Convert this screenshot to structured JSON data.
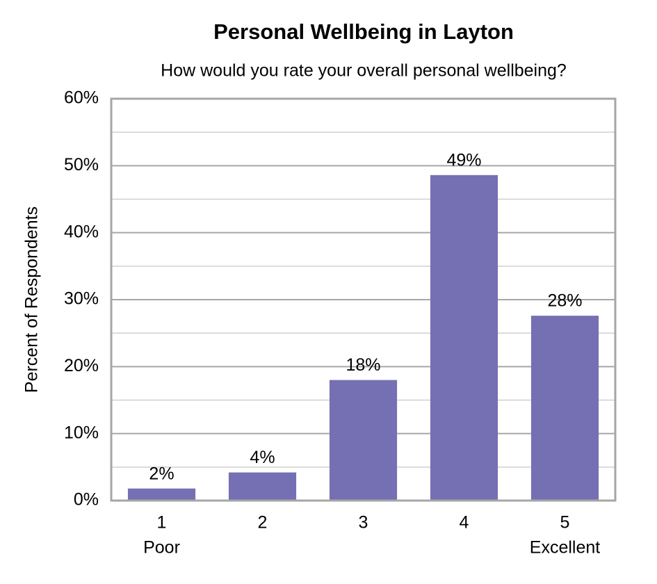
{
  "chart_data": {
    "type": "bar",
    "title": "Personal Wellbeing in Layton",
    "subtitle": "How would you rate your overall personal wellbeing?",
    "y_label": "Percent of Respondents",
    "categories": [
      "1",
      "2",
      "3",
      "4",
      "5"
    ],
    "category_sublabels": [
      "Poor",
      null,
      null,
      null,
      "Excellent"
    ],
    "values": [
      1.8,
      4.2,
      18.0,
      48.6,
      27.6
    ],
    "value_labels": [
      "2%",
      "4%",
      "18%",
      "49%",
      "28%"
    ],
    "color": "#7570b3",
    "ylim": [
      0,
      60
    ],
    "yticks": [
      {
        "value": 0,
        "label": "0%"
      },
      {
        "value": 10,
        "label": "10%"
      },
      {
        "value": 20,
        "label": "20%"
      },
      {
        "value": 30,
        "label": "30%"
      },
      {
        "value": 40,
        "label": "40%"
      },
      {
        "value": 50,
        "label": "50%"
      },
      {
        "value": 60,
        "label": "60%"
      }
    ],
    "minor_yticks": [
      5,
      15,
      25,
      35,
      45,
      55
    ],
    "grid": true
  }
}
